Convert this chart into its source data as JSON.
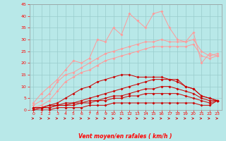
{
  "xlabel": "Vent moyen/en rafales ( km/h )",
  "background_color": "#b8e8e8",
  "grid_color": "#99cccc",
  "x": [
    0,
    1,
    2,
    3,
    4,
    5,
    6,
    7,
    8,
    9,
    10,
    11,
    12,
    13,
    14,
    15,
    16,
    17,
    18,
    19,
    20,
    21,
    22,
    23
  ],
  "line_dark1": [
    1,
    1,
    2,
    2,
    3,
    3,
    4,
    5,
    6,
    7,
    8,
    9,
    10,
    11,
    12,
    13,
    13,
    13,
    13,
    10,
    9,
    6,
    5,
    4
  ],
  "line_dark2": [
    1,
    1,
    1,
    2,
    2,
    3,
    3,
    4,
    4,
    5,
    6,
    6,
    7,
    8,
    9,
    9,
    10,
    10,
    9,
    8,
    7,
    5,
    4,
    4
  ],
  "line_dark3": [
    0,
    1,
    1,
    2,
    2,
    2,
    3,
    3,
    4,
    4,
    5,
    5,
    6,
    6,
    7,
    7,
    7,
    7,
    7,
    6,
    5,
    4,
    3,
    4
  ],
  "line_dark4": [
    0,
    0,
    0,
    1,
    1,
    1,
    1,
    2,
    2,
    2,
    3,
    3,
    3,
    3,
    3,
    3,
    3,
    3,
    3,
    3,
    3,
    2,
    2,
    4
  ],
  "line_pink1": [
    1,
    1,
    2,
    3,
    5,
    7,
    9,
    10,
    12,
    13,
    14,
    15,
    15,
    14,
    14,
    14,
    14,
    13,
    12,
    10,
    9,
    6,
    5,
    4
  ],
  "line_pink2": [
    3,
    7,
    10,
    13,
    17,
    21,
    20,
    22,
    30,
    29,
    35,
    32,
    41,
    38,
    35,
    41,
    42,
    35,
    30,
    29,
    33,
    20,
    24,
    23
  ],
  "line_pink3": [
    2,
    4,
    7,
    12,
    15,
    16,
    18,
    20,
    22,
    24,
    25,
    26,
    27,
    28,
    29,
    29,
    30,
    29,
    29,
    29,
    30,
    25,
    23,
    24
  ],
  "line_pink4": [
    1,
    2,
    4,
    8,
    12,
    14,
    16,
    17,
    19,
    21,
    22,
    23,
    24,
    25,
    26,
    27,
    27,
    27,
    27,
    27,
    28,
    23,
    22,
    23
  ],
  "ylim": [
    0,
    45
  ],
  "yticks": [
    0,
    5,
    10,
    15,
    20,
    25,
    30,
    35,
    40,
    45
  ],
  "xticks": [
    0,
    1,
    2,
    3,
    4,
    5,
    6,
    7,
    8,
    9,
    10,
    11,
    12,
    13,
    14,
    15,
    16,
    17,
    18,
    19,
    20,
    21,
    22,
    23
  ],
  "dark_color": "#cc0000",
  "pink_color1": "#cc0000",
  "pink_color": "#ff9999"
}
